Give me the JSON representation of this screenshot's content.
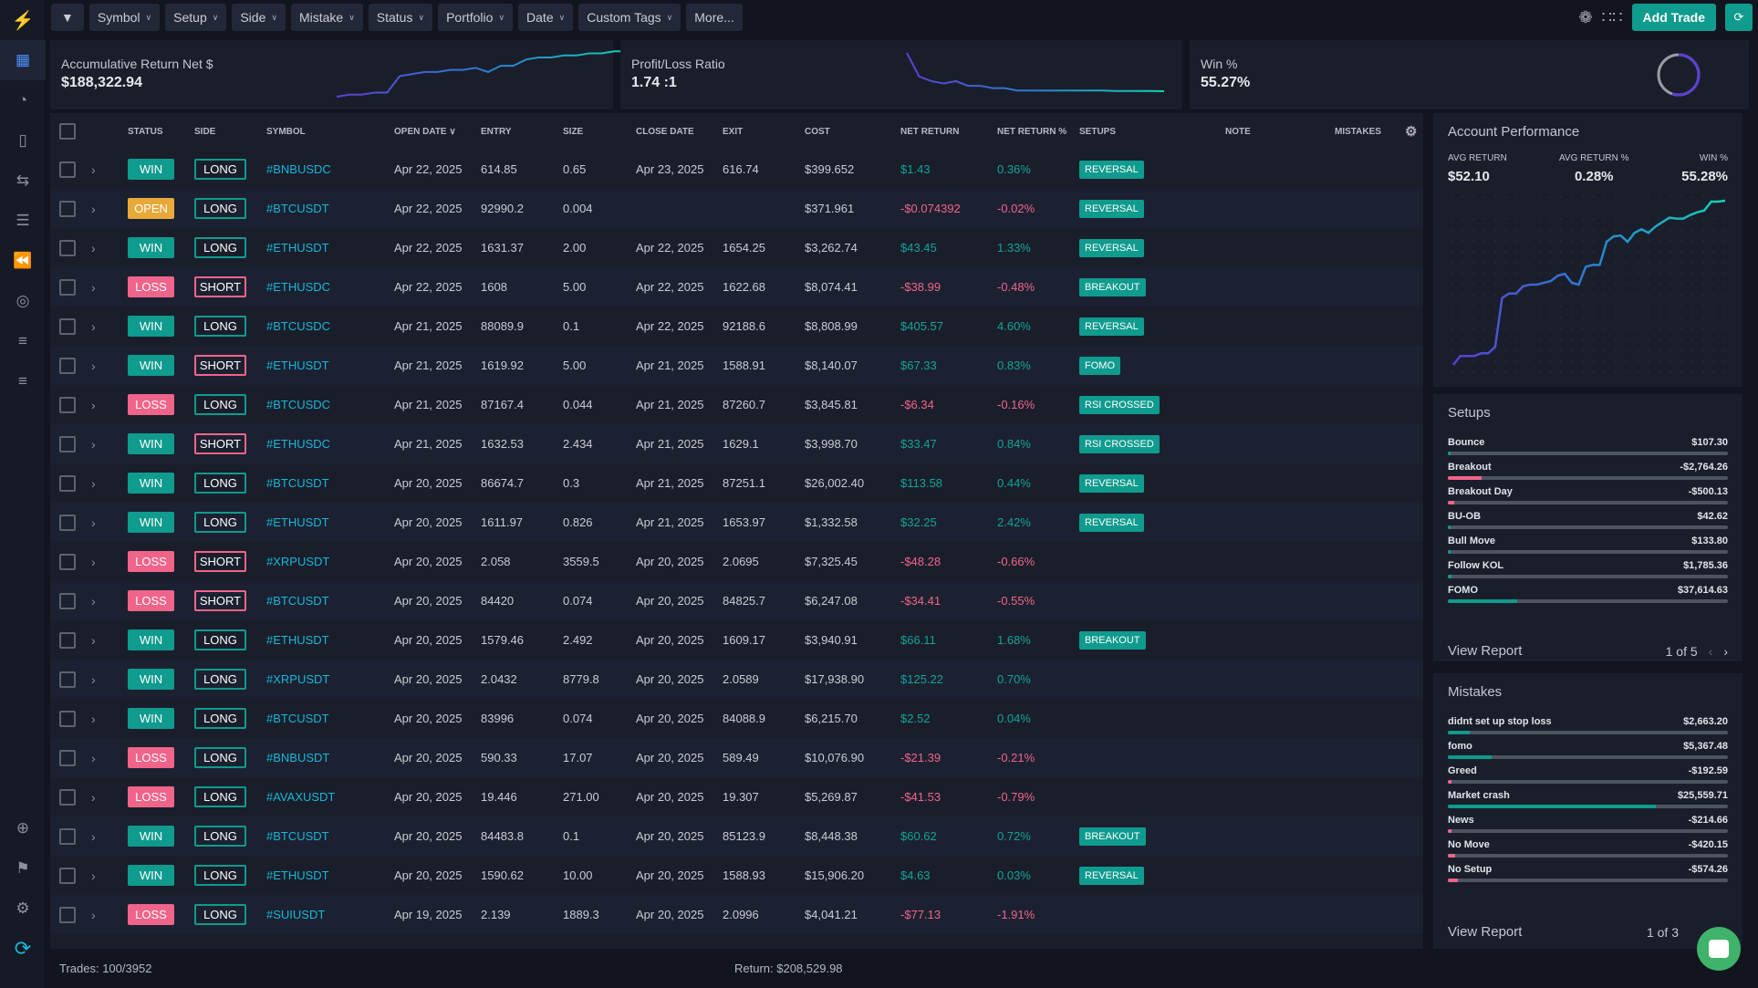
{
  "colors": {
    "accent": "#0f9b8e",
    "win": "#0f9b8e",
    "loss": "#f0648a",
    "open": "#e8a93a",
    "symbol": "#17b7d8",
    "line_start": "#5b3fd6",
    "line_end": "#14d3b5"
  },
  "sidebar": {
    "icons": [
      "logo-icon",
      "dashboard-icon",
      "reports-icon",
      "journal-icon",
      "trades-icon",
      "checklist-icon",
      "replay-icon",
      "target-icon",
      "sliders-icon",
      "filters-icon",
      "add-icon",
      "flag-icon",
      "settings-icon",
      "sync-icon"
    ]
  },
  "filters": [
    {
      "label": "Symbol"
    },
    {
      "label": "Setup"
    },
    {
      "label": "Side"
    },
    {
      "label": "Mistake"
    },
    {
      "label": "Status"
    },
    {
      "label": "Portfolio"
    },
    {
      "label": "Date"
    },
    {
      "label": "Custom Tags"
    },
    {
      "label": "More..."
    }
  ],
  "toolbar": {
    "add_trade": "Add Trade"
  },
  "cards": {
    "accum": {
      "label": "Accumulative Return Net $",
      "value": "$188,322.94",
      "spark": [
        2,
        3,
        3,
        4,
        4,
        12,
        13,
        14,
        14,
        15,
        15,
        16,
        14,
        17,
        17,
        20,
        21,
        21,
        22,
        22,
        23,
        23,
        24,
        24,
        25
      ]
    },
    "pl": {
      "label": "Profit/Loss Ratio",
      "value": "1.74 :1",
      "spark": [
        20,
        10,
        8,
        7,
        8,
        6,
        6,
        5,
        5,
        4,
        4,
        4,
        4,
        4,
        4,
        4,
        4,
        3.8,
        3.8,
        3.8,
        3.8,
        3.7
      ]
    },
    "win": {
      "label": "Win %",
      "value": "55.27%",
      "percent": 55.27
    }
  },
  "table": {
    "headers": [
      "",
      "",
      "Status",
      "Side",
      "Symbol",
      "Open Date",
      "Entry",
      "Size",
      "Close Date",
      "Exit",
      "Cost",
      "Net Return",
      "Net Return %",
      "Setups",
      "Note",
      "Mistakes"
    ],
    "rows": [
      [
        "WIN",
        "LONG",
        "#BNBUSDC",
        "Apr 22, 2025",
        "614.85",
        "0.65",
        "Apr 23, 2025",
        "616.74",
        "$399.652",
        "$1.43",
        "0.36%",
        "REVERSAL"
      ],
      [
        "OPEN",
        "LONG",
        "#BTCUSDT",
        "Apr 22, 2025",
        "92990.2",
        "0.004",
        "",
        "",
        "$371.961",
        "-$0.074392",
        "-0.02%",
        "REVERSAL"
      ],
      [
        "WIN",
        "LONG",
        "#ETHUSDT",
        "Apr 22, 2025",
        "1631.37",
        "2.00",
        "Apr 22, 2025",
        "1654.25",
        "$3,262.74",
        "$43.45",
        "1.33%",
        "REVERSAL"
      ],
      [
        "LOSS",
        "SHORT",
        "#ETHUSDC",
        "Apr 22, 2025",
        "1608",
        "5.00",
        "Apr 22, 2025",
        "1622.68",
        "$8,074.41",
        "-$38.99",
        "-0.48%",
        "BREAKOUT"
      ],
      [
        "WIN",
        "LONG",
        "#BTCUSDC",
        "Apr 21, 2025",
        "88089.9",
        "0.1",
        "Apr 22, 2025",
        "92188.6",
        "$8,808.99",
        "$405.57",
        "4.60%",
        "REVERSAL"
      ],
      [
        "WIN",
        "SHORT",
        "#ETHUSDT",
        "Apr 21, 2025",
        "1619.92",
        "5.00",
        "Apr 21, 2025",
        "1588.91",
        "$8,140.07",
        "$67.33",
        "0.83%",
        "FOMO"
      ],
      [
        "LOSS",
        "LONG",
        "#BTCUSDC",
        "Apr 21, 2025",
        "87167.4",
        "0.044",
        "Apr 21, 2025",
        "87260.7",
        "$3,845.81",
        "-$6.34",
        "-0.16%",
        "RSI CROSSED"
      ],
      [
        "WIN",
        "SHORT",
        "#ETHUSDC",
        "Apr 21, 2025",
        "1632.53",
        "2.434",
        "Apr 21, 2025",
        "1629.1",
        "$3,998.70",
        "$33.47",
        "0.84%",
        "RSI CROSSED"
      ],
      [
        "WIN",
        "LONG",
        "#BTCUSDT",
        "Apr 20, 2025",
        "86674.7",
        "0.3",
        "Apr 21, 2025",
        "87251.1",
        "$26,002.40",
        "$113.58",
        "0.44%",
        "REVERSAL"
      ],
      [
        "WIN",
        "LONG",
        "#ETHUSDT",
        "Apr 20, 2025",
        "1611.97",
        "0.826",
        "Apr 21, 2025",
        "1653.97",
        "$1,332.58",
        "$32.25",
        "2.42%",
        "REVERSAL"
      ],
      [
        "LOSS",
        "SHORT",
        "#XRPUSDT",
        "Apr 20, 2025",
        "2.058",
        "3559.5",
        "Apr 20, 2025",
        "2.0695",
        "$7,325.45",
        "-$48.28",
        "-0.66%",
        ""
      ],
      [
        "LOSS",
        "SHORT",
        "#BTCUSDT",
        "Apr 20, 2025",
        "84420",
        "0.074",
        "Apr 20, 2025",
        "84825.7",
        "$6,247.08",
        "-$34.41",
        "-0.55%",
        ""
      ],
      [
        "WIN",
        "LONG",
        "#ETHUSDT",
        "Apr 20, 2025",
        "1579.46",
        "2.492",
        "Apr 20, 2025",
        "1609.17",
        "$3,940.91",
        "$66.11",
        "1.68%",
        "BREAKOUT"
      ],
      [
        "WIN",
        "LONG",
        "#XRPUSDT",
        "Apr 20, 2025",
        "2.0432",
        "8779.8",
        "Apr 20, 2025",
        "2.0589",
        "$17,938.90",
        "$125.22",
        "0.70%",
        ""
      ],
      [
        "WIN",
        "LONG",
        "#BTCUSDT",
        "Apr 20, 2025",
        "83996",
        "0.074",
        "Apr 20, 2025",
        "84088.9",
        "$6,215.70",
        "$2.52",
        "0.04%",
        ""
      ],
      [
        "LOSS",
        "LONG",
        "#BNBUSDT",
        "Apr 20, 2025",
        "590.33",
        "17.07",
        "Apr 20, 2025",
        "589.49",
        "$10,076.90",
        "-$21.39",
        "-0.21%",
        ""
      ],
      [
        "LOSS",
        "LONG",
        "#AVAXUSDT",
        "Apr 20, 2025",
        "19.446",
        "271.00",
        "Apr 20, 2025",
        "19.307",
        "$5,269.87",
        "-$41.53",
        "-0.79%",
        ""
      ],
      [
        "WIN",
        "LONG",
        "#BTCUSDT",
        "Apr 20, 2025",
        "84483.8",
        "0.1",
        "Apr 20, 2025",
        "85123.9",
        "$8,448.38",
        "$60.62",
        "0.72%",
        "BREAKOUT"
      ],
      [
        "WIN",
        "LONG",
        "#ETHUSDT",
        "Apr 20, 2025",
        "1590.62",
        "10.00",
        "Apr 20, 2025",
        "1588.93",
        "$15,906.20",
        "$4.63",
        "0.03%",
        "REVERSAL"
      ],
      [
        "LOSS",
        "LONG",
        "#SUIUSDT",
        "Apr 19, 2025",
        "2.139",
        "1889.3",
        "Apr 20, 2025",
        "2.0996",
        "$4,041.21",
        "-$77.13",
        "-1.91%",
        ""
      ]
    ]
  },
  "footer": {
    "trades": "Trades: 100/3952",
    "return": "Return: $208,529.98"
  },
  "account": {
    "title": "Account Performance",
    "stats": [
      {
        "label": "AVG RETURN",
        "value": "$52.10"
      },
      {
        "label": "AVG RETURN %",
        "value": "0.28%"
      },
      {
        "label": "WIN %",
        "value": "55.28%"
      }
    ],
    "curve": [
      0,
      1,
      1,
      1,
      1.3,
      1.3,
      2,
      7.5,
      8,
      8,
      8.8,
      9,
      9,
      9.2,
      9.4,
      10,
      10.2,
      9.2,
      9,
      11,
      11.2,
      11.2,
      13.8,
      14.4,
      14.5,
      13.8,
      14.8,
      15.2,
      14.8,
      15.5,
      16,
      16.5,
      16.4,
      16.4,
      16.8,
      17.1,
      17.3,
      18.3,
      18.3,
      18.4
    ]
  },
  "setups": {
    "title": "Setups",
    "items": [
      {
        "name": "Bounce",
        "value": "$107.30",
        "fill": 0.3,
        "sign": "pos"
      },
      {
        "name": "Breakout",
        "value": "-$2,764.26",
        "fill": 12,
        "sign": "neg"
      },
      {
        "name": "Breakout Day",
        "value": "-$500.13",
        "fill": 2.2,
        "sign": "neg"
      },
      {
        "name": "BU-OB",
        "value": "$42.62",
        "fill": 0.2,
        "sign": "pos"
      },
      {
        "name": "Bull Move",
        "value": "$133.80",
        "fill": 0.4,
        "sign": "pos"
      },
      {
        "name": "Follow KOL",
        "value": "$1,785.36",
        "fill": 1.3,
        "sign": "pos"
      },
      {
        "name": "FOMO",
        "value": "$37,614.63",
        "fill": 24.8,
        "sign": "pos"
      }
    ],
    "view_report": "View Report",
    "page": "1 of 5"
  },
  "mistakes": {
    "title": "Mistakes",
    "items": [
      {
        "name": "didnt set up stop loss",
        "value": "$2,663.20",
        "fill": 7.8,
        "sign": "pos"
      },
      {
        "name": "fomo",
        "value": "$5,367.48",
        "fill": 15.7,
        "sign": "pos"
      },
      {
        "name": "Greed",
        "value": "-$192.59",
        "fill": 1.2,
        "sign": "neg"
      },
      {
        "name": "Market crash",
        "value": "$25,559.71",
        "fill": 74.4,
        "sign": "pos"
      },
      {
        "name": "News",
        "value": "-$214.66",
        "fill": 1.2,
        "sign": "neg"
      },
      {
        "name": "No Move",
        "value": "-$420.15",
        "fill": 2.6,
        "sign": "neg"
      },
      {
        "name": "No Setup",
        "value": "-$574.26",
        "fill": 3.5,
        "sign": "neg"
      }
    ],
    "view_report": "View Report",
    "page": "1 of 3"
  }
}
